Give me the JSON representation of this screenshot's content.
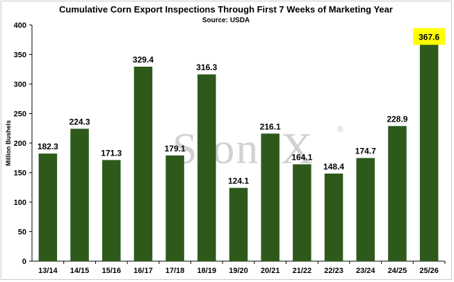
{
  "chart_data": {
    "type": "bar",
    "title": "Cumulative Corn Export Inspections Through First 7 Weeks of Marketing Year",
    "subtitle": "Source: USDA",
    "xlabel": "",
    "ylabel": "Million Bushels",
    "ylim": [
      0,
      400
    ],
    "yticks": [
      0,
      50,
      100,
      150,
      200,
      250,
      300,
      350,
      400
    ],
    "categories": [
      "13/14",
      "14/15",
      "15/16",
      "16/17",
      "17/18",
      "18/19",
      "19/20",
      "20/21",
      "21/22",
      "22/23",
      "23/24",
      "24/25",
      "25/26"
    ],
    "values": [
      182.3,
      224.3,
      171.3,
      329.4,
      179.1,
      316.3,
      124.1,
      216.1,
      164.1,
      148.4,
      174.7,
      228.9,
      367.6
    ],
    "data_labels": [
      "182.3",
      "224.3",
      "171.3",
      "329.4",
      "179.1",
      "316.3",
      "124.1",
      "216.1",
      "164.1",
      "148.4",
      "174.7",
      "228.9",
      "367.6"
    ],
    "highlight_index": 12,
    "grid": false,
    "legend": "none",
    "colors": {
      "bar": "#2d5a1b",
      "highlight": "#ffff00",
      "axis": "#000000"
    }
  },
  "watermark": {
    "text": "StoneX",
    "mark": "®"
  }
}
